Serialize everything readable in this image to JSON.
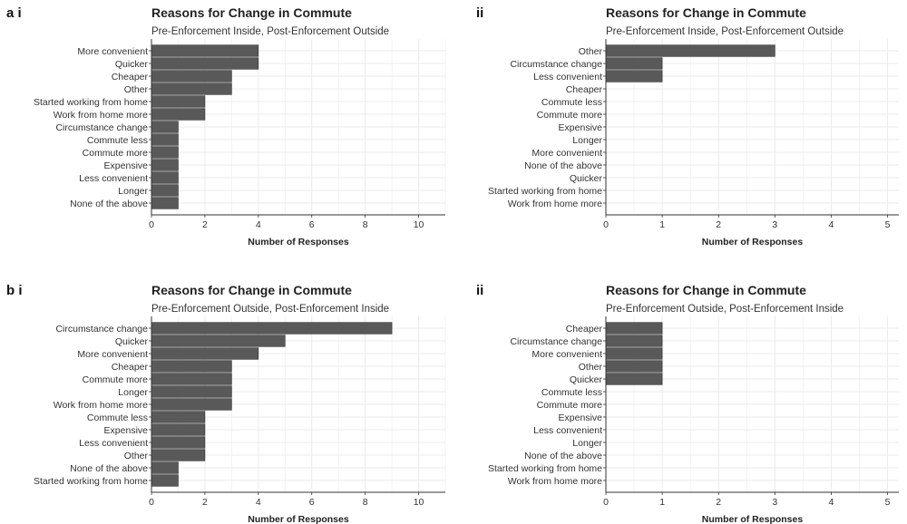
{
  "panel_labels": {
    "a_i": "a i",
    "a_ii": "ii",
    "b_i": "b i",
    "b_ii": "ii"
  },
  "colors": {
    "bar_fill": "#595959",
    "bar_stroke": "#2b2b2b",
    "grid": "#ebebeb",
    "text": "#333333",
    "title": "#222222"
  },
  "chart_data": [
    {
      "id": "a_i",
      "type": "bar",
      "orientation": "horizontal",
      "title": "Reasons for Change in Commute",
      "subtitle": "Pre-Enforcement Inside, Post-Enforcement Outside",
      "xlabel": "Number of Responses",
      "ylabel": "",
      "xlim": [
        0,
        11
      ],
      "xticks": [
        0,
        2,
        4,
        6,
        8,
        10
      ],
      "grid": true,
      "categories": [
        "More convenient",
        "Quicker",
        "Cheaper",
        "Other",
        "Started working from home",
        "Work from home more",
        "Circumstance change",
        "Commute less",
        "Commute more",
        "Expensive",
        "Less convenient",
        "Longer",
        "None of the above"
      ],
      "values": [
        4,
        4,
        3,
        3,
        2,
        2,
        1,
        1,
        1,
        1,
        1,
        1,
        1
      ]
    },
    {
      "id": "a_ii",
      "type": "bar",
      "orientation": "horizontal",
      "title": "Reasons for Change in Commute",
      "subtitle": "Pre-Enforcement Inside, Post-Enforcement Outside",
      "xlabel": "Number of Responses",
      "ylabel": "",
      "xlim": [
        0,
        5.2
      ],
      "xticks": [
        0,
        1,
        2,
        3,
        4,
        5
      ],
      "grid": true,
      "categories": [
        "Other",
        "Circumstance change",
        "Less convenient",
        "Cheaper",
        "Commute less",
        "Commute more",
        "Expensive",
        "Longer",
        "More convenient",
        "None of the above",
        "Quicker",
        "Started working from home",
        "Work from home more"
      ],
      "values": [
        3,
        1,
        1,
        0,
        0,
        0,
        0,
        0,
        0,
        0,
        0,
        0,
        0
      ]
    },
    {
      "id": "b_i",
      "type": "bar",
      "orientation": "horizontal",
      "title": "Reasons for Change in Commute",
      "subtitle": "Pre-Enforcement Outside, Post-Enforcement Inside",
      "xlabel": "Number of Responses",
      "ylabel": "",
      "xlim": [
        0,
        11
      ],
      "xticks": [
        0,
        2,
        4,
        6,
        8,
        10
      ],
      "grid": true,
      "categories": [
        "Circumstance change",
        "Quicker",
        "More convenient",
        "Cheaper",
        "Commute more",
        "Longer",
        "Work from home more",
        "Commute less",
        "Expensive",
        "Less convenient",
        "Other",
        "None of the above",
        "Started working from home"
      ],
      "values": [
        9,
        5,
        4,
        3,
        3,
        3,
        3,
        2,
        2,
        2,
        2,
        1,
        1
      ]
    },
    {
      "id": "b_ii",
      "type": "bar",
      "orientation": "horizontal",
      "title": "Reasons for Change in Commute",
      "subtitle": "Pre-Enforcement Outside, Post-Enforcement Inside",
      "xlabel": "Number of Responses",
      "ylabel": "",
      "xlim": [
        0,
        5.2
      ],
      "xticks": [
        0,
        1,
        2,
        3,
        4,
        5
      ],
      "grid": true,
      "categories": [
        "Cheaper",
        "Circumstance change",
        "More convenient",
        "Other",
        "Quicker",
        "Commute less",
        "Commute more",
        "Expensive",
        "Less convenient",
        "Longer",
        "None of the above",
        "Started working from home",
        "Work from home more"
      ],
      "values": [
        1,
        1,
        1,
        1,
        1,
        0,
        0,
        0,
        0,
        0,
        0,
        0,
        0
      ]
    }
  ]
}
